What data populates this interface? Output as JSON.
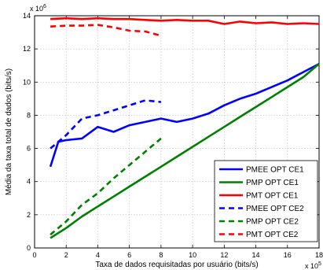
{
  "chart_data": {
    "type": "line",
    "xlabel": "Taxa de dados requisitadas por usuário (bits/s)",
    "ylabel": "Média da taxa total de dados (bits/s)",
    "x_exponent_label": "x 10",
    "x_exponent_power": "5",
    "y_exponent_label": "x 10",
    "y_exponent_power": "6",
    "xlim": [
      0,
      18
    ],
    "ylim": [
      0,
      14
    ],
    "x_ticks": [
      0,
      2,
      4,
      6,
      8,
      10,
      12,
      14,
      16,
      18
    ],
    "x_tick_labels": [
      "0",
      "2",
      "4",
      "6",
      "8",
      "10",
      "12",
      "14",
      "16",
      "18"
    ],
    "y_ticks": [
      0,
      2,
      4,
      6,
      8,
      10,
      12,
      14
    ],
    "y_tick_labels": [
      "0",
      "2",
      "4",
      "6",
      "8",
      "10",
      "12",
      "14"
    ],
    "grid": true,
    "legend_position": "bottom-right",
    "series": [
      {
        "name": "PMEE OPT CE1",
        "color": "#0000ff",
        "dash": "solid",
        "x": [
          1,
          1.5,
          2,
          3,
          4,
          5,
          6,
          7,
          8,
          9,
          10,
          11,
          12,
          13,
          14,
          15,
          16,
          17,
          18
        ],
        "y": [
          4.9,
          6.4,
          6.5,
          6.6,
          7.3,
          7.0,
          7.4,
          7.6,
          7.8,
          7.6,
          7.8,
          8.1,
          8.6,
          9.0,
          9.3,
          9.7,
          10.1,
          10.6,
          11.1
        ]
      },
      {
        "name": "PMP OPT CE1",
        "color": "#008000",
        "dash": "solid",
        "x": [
          1,
          2,
          3,
          4,
          5,
          6,
          7,
          8,
          9,
          10,
          11,
          12,
          13,
          14,
          15,
          16,
          17,
          18
        ],
        "y": [
          0.6,
          1.2,
          1.9,
          2.5,
          3.1,
          3.7,
          4.3,
          4.9,
          5.5,
          6.1,
          6.7,
          7.3,
          7.9,
          8.5,
          9.1,
          9.7,
          10.3,
          11.1
        ]
      },
      {
        "name": "PMT OPT CE1",
        "color": "#ff0000",
        "dash": "solid",
        "x": [
          1,
          2,
          3,
          4,
          5,
          6,
          7,
          8,
          9,
          10,
          11,
          12,
          13,
          14,
          15,
          16,
          17,
          18
        ],
        "y": [
          13.8,
          13.85,
          13.8,
          13.85,
          13.8,
          13.8,
          13.75,
          13.7,
          13.75,
          13.7,
          13.7,
          13.5,
          13.65,
          13.55,
          13.6,
          13.5,
          13.55,
          13.5
        ]
      },
      {
        "name": "PMEE OPT CE2",
        "color": "#0000ff",
        "dash": "dashed",
        "x": [
          1,
          2,
          3,
          4,
          5,
          6,
          7,
          8
        ],
        "y": [
          6.0,
          6.8,
          7.8,
          8.0,
          8.3,
          8.6,
          8.9,
          8.8
        ]
      },
      {
        "name": "PMP OPT CE2",
        "color": "#008000",
        "dash": "dashed",
        "x": [
          1,
          2,
          3,
          4,
          5,
          6,
          7,
          8
        ],
        "y": [
          0.8,
          1.6,
          2.6,
          3.3,
          4.2,
          5.0,
          5.8,
          6.6
        ]
      },
      {
        "name": "PMT OPT CE2",
        "color": "#ff0000",
        "dash": "dashed",
        "x": [
          1,
          2,
          3,
          4,
          5,
          6,
          7,
          8
        ],
        "y": [
          13.35,
          13.4,
          13.4,
          13.45,
          13.3,
          13.1,
          13.05,
          12.8
        ]
      }
    ]
  }
}
